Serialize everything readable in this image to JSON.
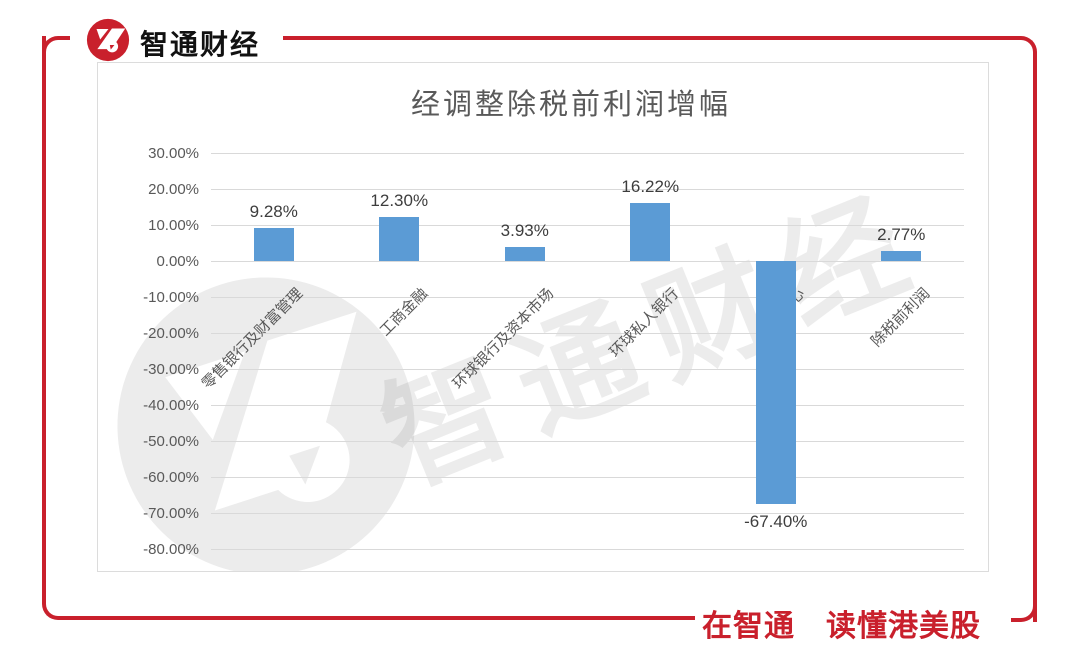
{
  "brand": {
    "logo_text": "智通财经",
    "slogan": "在智通　读懂港美股",
    "accent_red": "#C9202C"
  },
  "watermark": {
    "text": "智通财经"
  },
  "chart_data": {
    "type": "bar",
    "title": "经调整除税前利润增幅",
    "xlabel": "",
    "ylabel": "",
    "categories": [
      "零售银行及财富管理",
      "工商金融",
      "环球银行及资本市场",
      "环球私人银行",
      "企业中心",
      "除税前利润"
    ],
    "values": [
      9.28,
      12.3,
      3.93,
      16.22,
      -67.4,
      2.77
    ],
    "value_labels": [
      "9.28%",
      "12.30%",
      "3.93%",
      "16.22%",
      "-67.40%",
      "2.77%"
    ],
    "ytick_labels": [
      "30.00%",
      "20.00%",
      "10.00%",
      "0.00%",
      "-10.00%",
      "-20.00%",
      "-30.00%",
      "-40.00%",
      "-50.00%",
      "-60.00%",
      "-70.00%",
      "-80.00%"
    ],
    "ylim": [
      -80,
      30
    ],
    "ystep": 10,
    "grid": true,
    "legend": false,
    "bar_color": "#5B9BD5"
  }
}
